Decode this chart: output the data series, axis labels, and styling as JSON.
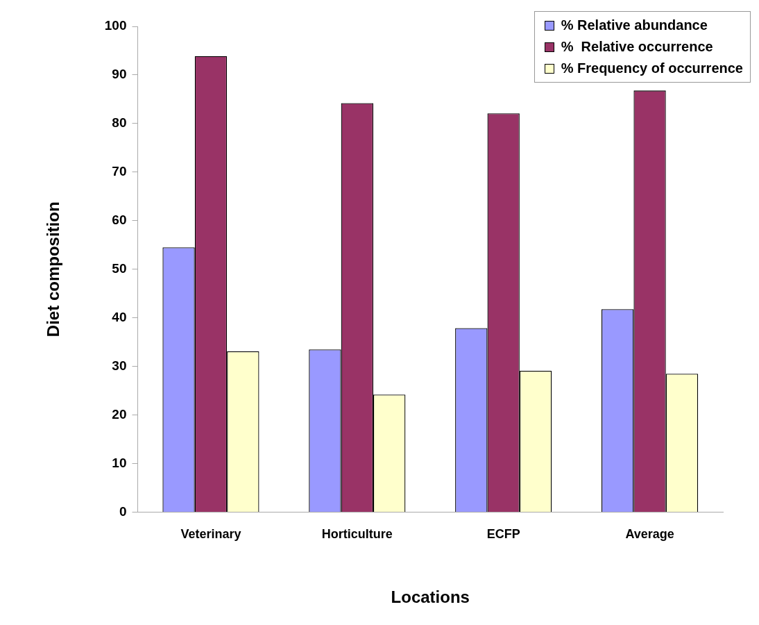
{
  "chart_data": {
    "type": "bar",
    "xlabel": "Locations",
    "ylabel": "Diet composition",
    "categories": [
      "Veterinary",
      "Horticulture",
      "ECFP",
      "Average"
    ],
    "series": [
      {
        "name": "% Relative abundance",
        "color": "#9999ff",
        "values": [
          54.5,
          33.5,
          37.9,
          41.8
        ]
      },
      {
        "name": "%  Relative occurrence",
        "color": "#993366",
        "values": [
          93.9,
          84.2,
          82.1,
          86.8
        ]
      },
      {
        "name": "% Frequency of occurrence",
        "color": "#ffffcc",
        "values": [
          33.1,
          24.2,
          29.1,
          28.5
        ]
      }
    ],
    "ylim": [
      0,
      100
    ],
    "yticks": [
      0,
      10,
      20,
      30,
      40,
      50,
      60,
      70,
      80,
      90,
      100
    ],
    "grid": false,
    "legend": "top right"
  }
}
